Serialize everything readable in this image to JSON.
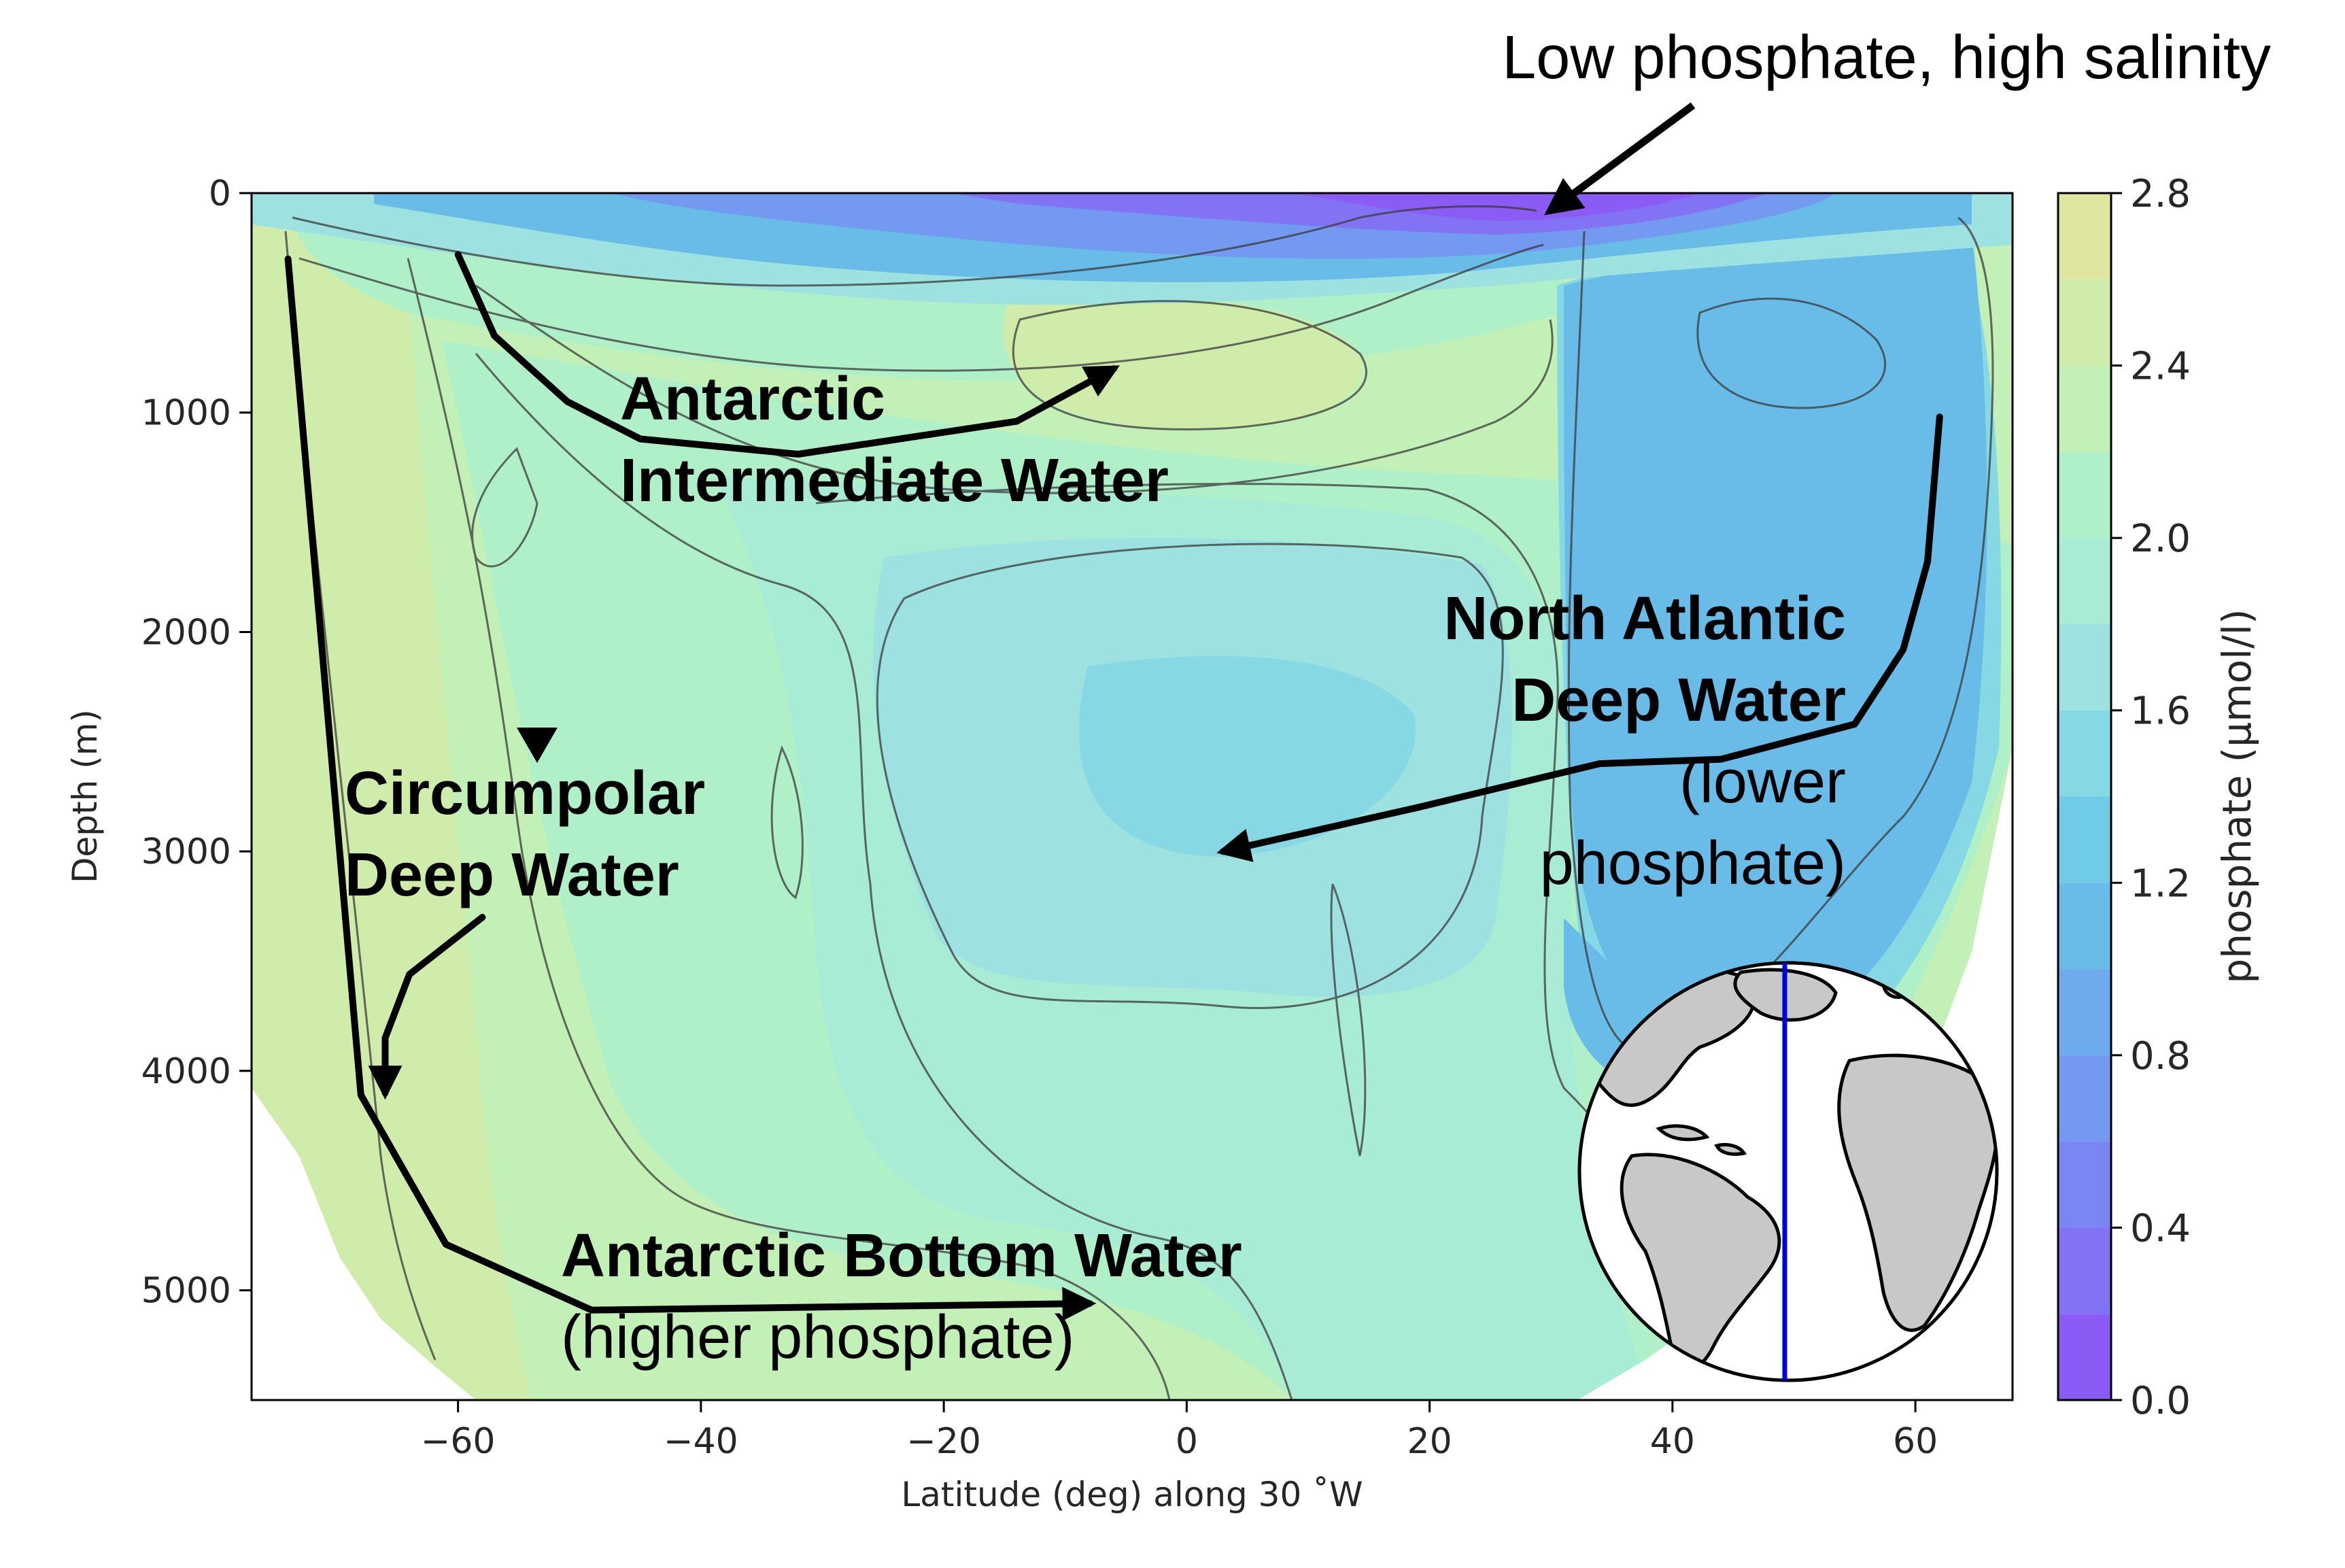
{
  "chart_data": {
    "type": "heatmap",
    "subtype": "filled-contour-section",
    "xlabel": "Latitude (deg) along 30 ˚W",
    "ylabel": "Depth (m)",
    "xlim": [
      -77,
      68
    ],
    "ylim": [
      5500,
      0
    ],
    "y_inverted": true,
    "x_ticks": [
      -60,
      -40,
      -20,
      0,
      20,
      40,
      60
    ],
    "x_tick_labels": [
      "−60",
      "−40",
      "−20",
      "0",
      "20",
      "40",
      "60"
    ],
    "y_ticks": [
      0,
      1000,
      2000,
      3000,
      4000,
      5000
    ],
    "y_tick_labels": [
      "0",
      "1000",
      "2000",
      "3000",
      "4000",
      "5000"
    ],
    "grid": false,
    "colorbar": {
      "label": "phosphate (μmol/l)",
      "min": 0.0,
      "max": 2.8,
      "tick_values": [
        0.0,
        0.4,
        0.8,
        1.2,
        1.6,
        2.0,
        2.4,
        2.8
      ],
      "tick_labels": [
        "0.0",
        "0.4",
        "0.8",
        "1.2",
        "1.6",
        "2.0",
        "2.4",
        "2.8"
      ],
      "levels": [
        0.0,
        0.2,
        0.4,
        0.6,
        0.8,
        1.0,
        1.2,
        1.4,
        1.6,
        1.8,
        2.0,
        2.2,
        2.4,
        2.6,
        2.8
      ],
      "colors": [
        "#8b5cf5",
        "#8272f4",
        "#7a86f3",
        "#7399f0",
        "#6dabec",
        "#68bce7",
        "#70cbe6",
        "#86d8e4",
        "#9de2e0",
        "#a8ecd6",
        "#b0f0c9",
        "#c2f0b6",
        "#d0ecab",
        "#e0e6a0"
      ]
    },
    "water_masses": [
      {
        "label_lines": [
          "Antarctic",
          "Intermediate Water"
        ],
        "path": [
          [
            -60,
            280
          ],
          [
            -57,
            650
          ],
          [
            -51,
            950
          ],
          [
            -45,
            1120
          ],
          [
            -32,
            1190
          ],
          [
            -14,
            1040
          ],
          [
            -6,
            800
          ]
        ]
      },
      {
        "label_lines": [
          "North Atlantic",
          "Deep Water"
        ],
        "note_lines": [
          "(lower",
          "phosphate)"
        ],
        "path": [
          [
            62,
            1020
          ],
          [
            61,
            1680
          ],
          [
            59,
            2080
          ],
          [
            55,
            2420
          ],
          [
            44,
            2580
          ],
          [
            34,
            2600
          ],
          [
            19,
            2800
          ],
          [
            3,
            3000
          ]
        ]
      },
      {
        "label_lines": [
          "Circumpolar",
          "Deep Water"
        ],
        "path": [
          [
            -58,
            3300
          ],
          [
            -64,
            3560
          ],
          [
            -66,
            3850
          ],
          [
            -66,
            4100
          ]
        ]
      },
      {
        "label_lines": [
          "Antarctic Bottom Water"
        ],
        "note_lines": [
          "(higher phosphate)"
        ],
        "path": [
          [
            -74,
            300
          ],
          [
            -68,
            4110
          ],
          [
            -61,
            4790
          ],
          [
            -49,
            5090
          ],
          [
            -8,
            5060
          ]
        ]
      }
    ],
    "surface_annotation": {
      "text": "Low phosphate, high salinity",
      "points_to": [
        29,
        100
      ]
    },
    "depth_marker": {
      "x": -53,
      "y": 2500
    },
    "inset_map": {
      "projection": "orthographic",
      "section_line_lon": "30˚W",
      "line_color": "#0000dd",
      "land_color": "#c8c8c8"
    }
  }
}
